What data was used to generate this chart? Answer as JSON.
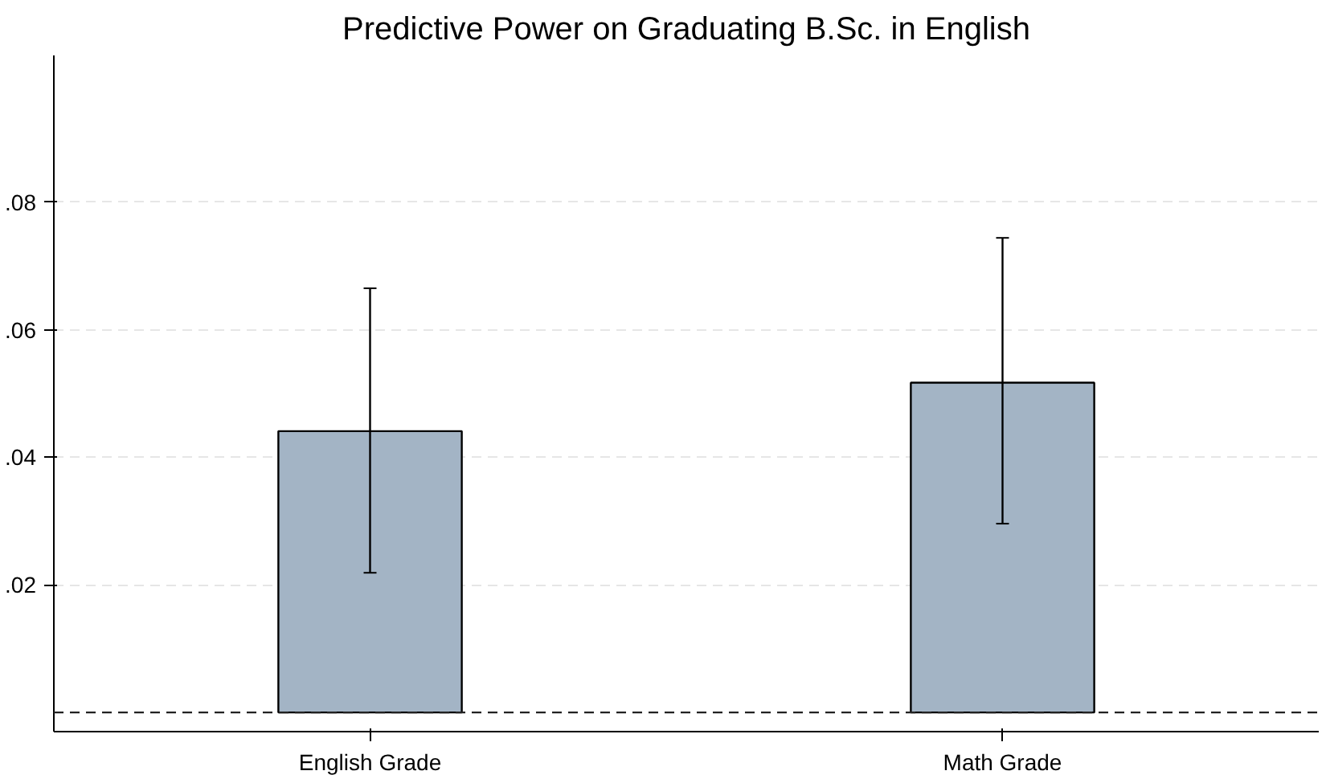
{
  "chart_data": {
    "type": "bar",
    "title": "Predictive Power on Graduating B.Sc. in English",
    "categories": [
      "English Grade",
      "Math Grade"
    ],
    "series": [
      {
        "color": "#a3b4c5",
        "values": [
          0.0441,
          0.0517
        ],
        "errors": [
          [
            0.0219,
            0.0665
          ],
          [
            0.0296,
            0.0744
          ]
        ]
      }
    ],
    "ylim": [
      -0.003,
      0.103
    ],
    "yticks": [
      {
        "value": 0.02,
        "label": ".02"
      },
      {
        "value": 0.04,
        "label": ".04"
      },
      {
        "value": 0.06,
        "label": ".06"
      },
      {
        "value": 0.08,
        "label": ".08"
      }
    ],
    "grid": "y",
    "ref_lines": [
      {
        "axis": "y",
        "value": 0,
        "line_style": "dashed",
        "color": "#222222"
      }
    ]
  }
}
